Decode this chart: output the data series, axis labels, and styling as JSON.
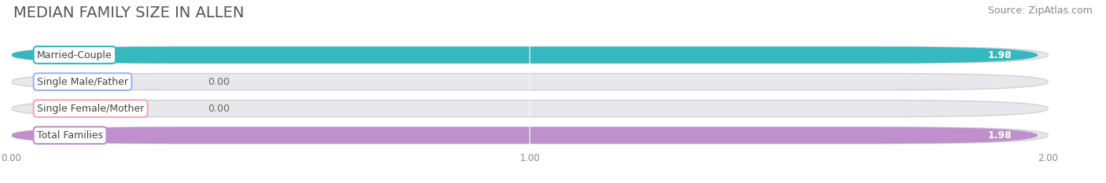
{
  "title": "MEDIAN FAMILY SIZE IN ALLEN",
  "source": "Source: ZipAtlas.com",
  "categories": [
    "Married-Couple",
    "Single Male/Father",
    "Single Female/Mother",
    "Total Families"
  ],
  "values": [
    1.98,
    0.0,
    0.0,
    1.98
  ],
  "bar_colors": [
    "#35b8be",
    "#a0b4e8",
    "#f0a8b8",
    "#bf90cc"
  ],
  "xlim_max": 2.09,
  "bar_xlim_max": 2.0,
  "xticks": [
    0.0,
    1.0,
    2.0
  ],
  "xtick_labels": [
    "0.00",
    "1.00",
    "2.00"
  ],
  "background_color": "#ffffff",
  "bar_bg_color": "#e8e8ec",
  "bar_bg_edge_color": "#d0d0d8",
  "title_fontsize": 14,
  "source_fontsize": 9,
  "label_fontsize": 9,
  "value_fontsize": 9
}
